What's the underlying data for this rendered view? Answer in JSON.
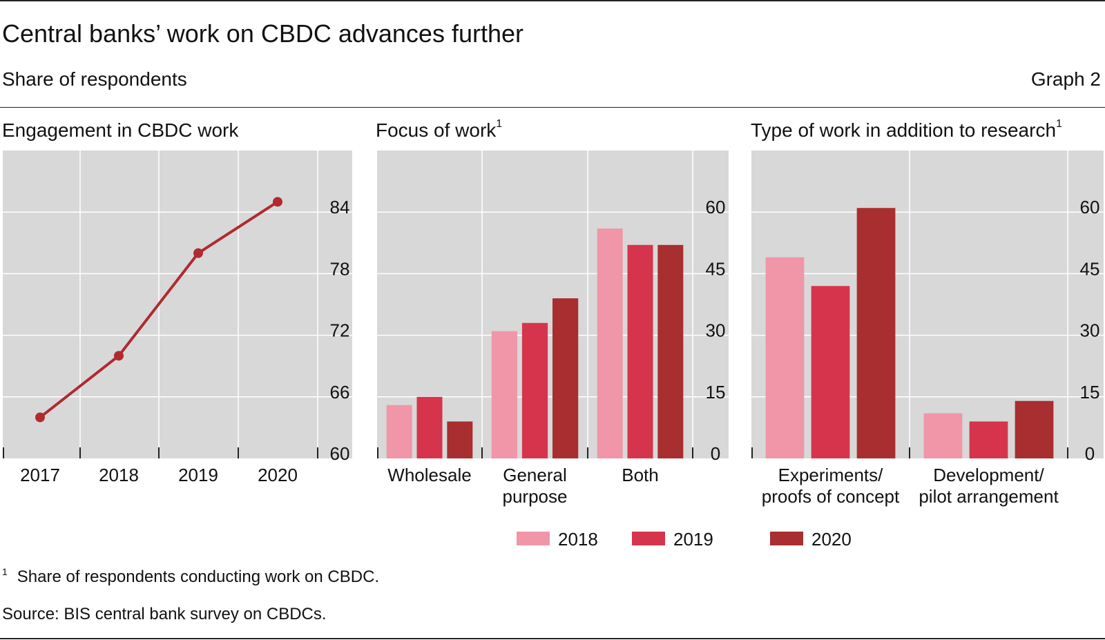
{
  "header": {
    "title": "Central banks’ work on CBDC advances further",
    "subtitle": "Share of respondents",
    "graph_label": "Graph 2"
  },
  "footnote": {
    "marker": "1",
    "text": "Share of respondents conducting work on CBDC."
  },
  "source": "Source: BIS central bank survey on CBDCs.",
  "colors": {
    "2018": "#f096a8",
    "2019": "#d6344c",
    "2020": "#a82e30",
    "line": "#b02a30",
    "panel_bg": "#d8d8d8",
    "grid": "#ffffff"
  },
  "chart_data": [
    {
      "type": "line",
      "title": "Engagement in CBDC work",
      "title_sup": "",
      "categories": [
        "2017",
        "2018",
        "2019",
        "2020"
      ],
      "series": [
        {
          "values": [
            64,
            70,
            80,
            85
          ]
        }
      ],
      "ylim": [
        60,
        90
      ],
      "yticks": [
        "60",
        "66",
        "72",
        "78",
        "84"
      ],
      "ytick_values": [
        60,
        66,
        72,
        78,
        84
      ],
      "axis_side": "right",
      "grid": true
    },
    {
      "type": "bar",
      "title": "Focus of work",
      "title_sup": "1",
      "categories": [
        [
          "Wholesale"
        ],
        [
          "General",
          "purpose"
        ],
        [
          "Both"
        ]
      ],
      "series": [
        {
          "name": "2018",
          "values": [
            13,
            31,
            56
          ]
        },
        {
          "name": "2019",
          "values": [
            15,
            33,
            52
          ]
        },
        {
          "name": "2020",
          "values": [
            9,
            39,
            52
          ]
        }
      ],
      "ylim": [
        0,
        75
      ],
      "yticks": [
        "0",
        "15",
        "30",
        "45",
        "60"
      ],
      "ytick_values": [
        0,
        15,
        30,
        45,
        60
      ],
      "axis_side": "right",
      "grid": true
    },
    {
      "type": "bar",
      "title": "Type of work in addition to research",
      "title_sup": "1",
      "categories": [
        [
          "Experiments/",
          "proofs of concept"
        ],
        [
          "Development/",
          "pilot arrangement"
        ]
      ],
      "series": [
        {
          "name": "2018",
          "values": [
            49,
            11
          ]
        },
        {
          "name": "2019",
          "values": [
            42,
            9
          ]
        },
        {
          "name": "2020",
          "values": [
            61,
            14
          ]
        }
      ],
      "ylim": [
        0,
        75
      ],
      "yticks": [
        "0",
        "15",
        "30",
        "45",
        "60"
      ],
      "ytick_values": [
        0,
        15,
        30,
        45,
        60
      ],
      "axis_side": "right",
      "grid": true
    }
  ],
  "legend": {
    "placement": "bottom",
    "items": [
      {
        "label": "2018",
        "color": "#f096a8"
      },
      {
        "label": "2019",
        "color": "#d6344c"
      },
      {
        "label": "2020",
        "color": "#a82e30"
      }
    ]
  }
}
